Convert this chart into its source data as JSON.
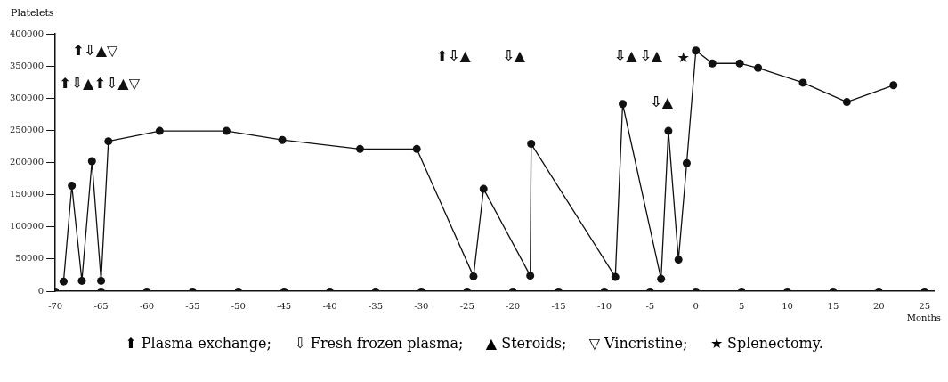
{
  "chart_data": {
    "type": "line",
    "xlabel": "Months",
    "ylabel": "Platelets",
    "xlim": [
      -70,
      26
    ],
    "xticks": [
      -70,
      -65,
      -60,
      -55,
      -50,
      -45,
      -40,
      -35,
      -30,
      -25,
      -20,
      -15,
      -10,
      -5,
      0,
      5,
      10,
      15,
      20,
      25
    ],
    "ylim": [
      0,
      400000
    ],
    "yticks": [
      0,
      50000,
      100000,
      150000,
      200000,
      250000,
      300000,
      350000,
      400000
    ],
    "grid": false,
    "legend": false,
    "marker": "circle",
    "line_style": "solid",
    "series": [
      {
        "color": "#111111",
        "x": [
          -69.1,
          -68.2,
          -67.1,
          -66.0,
          -65.0,
          -64.2,
          -58.6,
          -51.3,
          -45.2,
          -36.7,
          -30.5,
          -24.3,
          -23.2,
          -18.1,
          -18.0,
          -8.8,
          -8.0,
          -3.8,
          -3.0,
          -1.9,
          -1.0,
          0,
          1.8,
          4.8,
          6.8,
          11.7,
          16.5,
          21.6
        ],
        "values": [
          15000,
          164000,
          16000,
          202000,
          16000,
          233000,
          249000,
          249000,
          235000,
          221000,
          221000,
          23000,
          159000,
          24000,
          229000,
          22000,
          291000,
          19000,
          249000,
          49000,
          199000,
          374000,
          354000,
          354000,
          347000,
          324000,
          294000,
          320000
        ]
      },
      {
        "type": "scatter",
        "color": "#111111",
        "x": [
          -70,
          -65,
          -60,
          -55,
          -50,
          -45,
          -40,
          -35,
          -30,
          -25,
          -20,
          -15,
          -10,
          -5,
          0,
          5,
          10,
          15,
          20,
          25
        ],
        "values": [
          0,
          0,
          0,
          0,
          0,
          0,
          0,
          0,
          0,
          0,
          0,
          0,
          0,
          0,
          0,
          0,
          0,
          0,
          0,
          0
        ]
      }
    ],
    "annotations": [
      "⬆⇩▲▽",
      "⬆⇩▲",
      "⬆⇩▲▽",
      "⬆⇩▲",
      "⇩▲",
      "⇩▲",
      "⇩▲",
      "★",
      "⇩▲",
      "⬆ Plasma exchange;     ⇩ Fresh frozen plasma;     ▲ Steroids;     ▽ Vincristine;     ★ Splenectomy."
    ]
  }
}
